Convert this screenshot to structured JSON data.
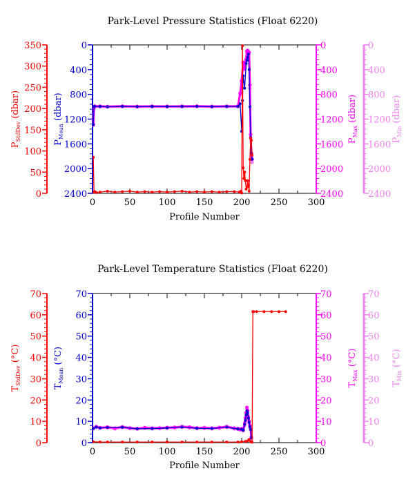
{
  "colors": {
    "stddev": "#ff0000",
    "mean": "#0000cc",
    "max": "#ff00ff",
    "min": "#ee82ee",
    "frame": "#000000"
  },
  "chart_data": [
    {
      "type": "line",
      "title": "Park-Level Pressure Statistics (Float 6220)",
      "xlabel": "Profile Number",
      "xlim": [
        0,
        300
      ],
      "x_ticks": [
        "0",
        "50",
        "100",
        "150",
        "200",
        "250",
        "300"
      ],
      "axes": [
        {
          "key": "stddev",
          "label_main": "P",
          "label_sub": "StdDev",
          "label_unit": " (dbar)",
          "lim": [
            0,
            350
          ],
          "reversed": false,
          "ticks": [
            "0",
            "50",
            "100",
            "150",
            "200",
            "250",
            "300",
            "350"
          ]
        },
        {
          "key": "mean",
          "label_main": "P",
          "label_sub": "Mean",
          "label_unit": " (dbar)",
          "lim": [
            0,
            2400
          ],
          "reversed": true,
          "ticks": [
            "0",
            "400",
            "800",
            "1200",
            "1600",
            "2000",
            "2400"
          ]
        },
        {
          "key": "max",
          "label_main": "P",
          "label_sub": "Max",
          "label_unit": " (dbar)",
          "lim": [
            0,
            2400
          ],
          "reversed": true,
          "ticks": [
            "0",
            "400",
            "800",
            "1200",
            "1600",
            "2000",
            "2400"
          ]
        },
        {
          "key": "min",
          "label_main": "P",
          "label_sub": "Min",
          "label_unit": " (dbar)",
          "lim": [
            0,
            2400
          ],
          "reversed": true,
          "ticks": [
            "0",
            "400",
            "800",
            "1200",
            "1600",
            "2000",
            "2400"
          ]
        }
      ],
      "series": [
        {
          "key": "min",
          "axis": 3,
          "x": [
            1,
            2,
            3,
            10,
            20,
            40,
            60,
            80,
            100,
            120,
            140,
            160,
            180,
            195,
            198,
            200,
            202,
            204,
            206,
            207,
            208,
            209,
            210,
            211,
            212,
            213,
            214
          ],
          "y": [
            1300,
            1020,
            1000,
            1000,
            1005,
            998,
            1003,
            1000,
            1002,
            1000,
            998,
            1003,
            1000,
            1000,
            800,
            600,
            300,
            400,
            250,
            120,
            100,
            150,
            130,
            700,
            1500,
            1800,
            1900
          ]
        },
        {
          "key": "max",
          "axis": 2,
          "x": [
            1,
            2,
            3,
            10,
            20,
            40,
            60,
            80,
            100,
            120,
            140,
            160,
            180,
            195,
            198,
            200,
            202,
            204,
            206,
            207,
            208,
            209,
            210,
            211,
            212,
            213,
            214
          ],
          "y": [
            1280,
            1010,
            990,
            992,
            996,
            990,
            995,
            992,
            994,
            992,
            990,
            995,
            992,
            990,
            780,
            580,
            280,
            380,
            230,
            100,
            90,
            130,
            120,
            650,
            1450,
            1750,
            1850
          ]
        },
        {
          "key": "mean",
          "axis": 1,
          "x": [
            1,
            2,
            3,
            10,
            20,
            40,
            60,
            80,
            100,
            120,
            140,
            160,
            180,
            195,
            198,
            200,
            201,
            202,
            204,
            206,
            207,
            208,
            209,
            210,
            211,
            212,
            213,
            214
          ],
          "y": [
            1290,
            1000,
            995,
            995,
            1000,
            995,
            998,
            995,
            997,
            995,
            994,
            998,
            995,
            995,
            950,
            1400,
            900,
            500,
            700,
            300,
            250,
            200,
            150,
            400,
            1000,
            1500,
            1750,
            1850
          ]
        },
        {
          "key": "stddev",
          "axis": 0,
          "x": [
            1,
            2,
            3,
            5,
            10,
            20,
            30,
            40,
            50,
            60,
            70,
            80,
            90,
            100,
            110,
            120,
            130,
            140,
            150,
            160,
            170,
            180,
            190,
            197,
            199,
            200,
            201,
            202,
            203,
            204,
            205,
            206,
            207,
            208,
            209,
            210,
            211,
            212,
            213,
            214
          ],
          "y": [
            85,
            3,
            4,
            2,
            3,
            5,
            3,
            4,
            5,
            3,
            4,
            3,
            4,
            3,
            4,
            5,
            3,
            4,
            3,
            4,
            3,
            4,
            4,
            3,
            5,
            1,
            348,
            60,
            35,
            50,
            30,
            10,
            15,
            30,
            20,
            5,
            80,
            130,
            125,
            90
          ]
        }
      ]
    },
    {
      "type": "line",
      "title": "Park-Level Temperature Statistics (Float 6220)",
      "xlabel": "Profile Number",
      "xlim": [
        0,
        300
      ],
      "x_ticks": [
        "0",
        "50",
        "100",
        "150",
        "200",
        "250",
        "300"
      ],
      "axes": [
        {
          "key": "stddev",
          "label_main": "T",
          "label_sub": "StdDev",
          "label_unit": " (°C)",
          "lim": [
            0,
            70
          ],
          "reversed": false,
          "ticks": [
            "0",
            "10",
            "20",
            "30",
            "40",
            "50",
            "60",
            "70"
          ]
        },
        {
          "key": "mean",
          "label_main": "T",
          "label_sub": "Mean",
          "label_unit": " (°C)",
          "lim": [
            0,
            70
          ],
          "reversed": false,
          "ticks": [
            "0",
            "10",
            "20",
            "30",
            "40",
            "50",
            "60",
            "70"
          ]
        },
        {
          "key": "max",
          "label_main": "T",
          "label_sub": "Max",
          "label_unit": " (°C)",
          "lim": [
            0,
            70
          ],
          "reversed": false,
          "ticks": [
            "0",
            "10",
            "20",
            "30",
            "40",
            "50",
            "60",
            "70"
          ]
        },
        {
          "key": "min",
          "label_main": "T",
          "label_sub": "Min",
          "label_unit": " (°C)",
          "lim": [
            0,
            70
          ],
          "reversed": false,
          "ticks": [
            "0",
            "10",
            "20",
            "30",
            "40",
            "50",
            "60",
            "70"
          ]
        }
      ],
      "series": [
        {
          "key": "min",
          "axis": 3,
          "x": [
            1,
            5,
            10,
            20,
            30,
            40,
            50,
            60,
            70,
            80,
            90,
            100,
            110,
            120,
            130,
            140,
            150,
            160,
            170,
            180,
            190,
            195,
            198,
            200,
            202,
            204,
            205,
            206,
            207,
            208,
            209,
            210,
            211,
            212,
            213
          ],
          "y": [
            6.5,
            7.2,
            6.8,
            7.0,
            6.5,
            7.1,
            6.6,
            6.4,
            6.7,
            6.5,
            6.6,
            6.8,
            6.9,
            7.2,
            7.0,
            6.6,
            6.7,
            6.5,
            6.8,
            7.2,
            6.5,
            6.3,
            6.0,
            6.2,
            5.5,
            8.0,
            10.0,
            12.0,
            14.0,
            13.0,
            11.0,
            9.0,
            7.0,
            6.0,
            2.0
          ]
        },
        {
          "key": "max",
          "axis": 2,
          "x": [
            1,
            5,
            10,
            20,
            30,
            40,
            50,
            60,
            70,
            80,
            90,
            100,
            110,
            120,
            130,
            140,
            150,
            160,
            170,
            180,
            190,
            195,
            198,
            200,
            202,
            204,
            205,
            206,
            207,
            208,
            209,
            210,
            211,
            212,
            213
          ],
          "y": [
            6.8,
            7.5,
            7.0,
            7.3,
            6.8,
            7.4,
            6.9,
            6.6,
            7.0,
            6.8,
            6.9,
            7.1,
            7.2,
            7.5,
            7.3,
            6.9,
            7.0,
            6.8,
            7.1,
            7.5,
            6.8,
            6.6,
            6.3,
            6.5,
            6.0,
            9.0,
            11.5,
            14.0,
            16.5,
            15.0,
            12.0,
            10.0,
            8.0,
            6.5,
            2.5
          ]
        },
        {
          "key": "mean",
          "axis": 1,
          "x": [
            1,
            5,
            10,
            20,
            40,
            60,
            80,
            100,
            120,
            140,
            160,
            180,
            195,
            200,
            202,
            204,
            205,
            206,
            207,
            208,
            209,
            210,
            211,
            212,
            213
          ],
          "y": [
            6.6,
            7.3,
            6.9,
            7.1,
            7.2,
            6.5,
            6.6,
            6.9,
            7.3,
            6.7,
            6.6,
            7.3,
            6.4,
            6.3,
            5.8,
            8.5,
            10.5,
            13.0,
            15.0,
            14.0,
            11.5,
            9.5,
            7.5,
            6.2,
            2.2
          ]
        },
        {
          "key": "stddev",
          "axis": 0,
          "x": [
            1,
            10,
            20,
            40,
            60,
            80,
            100,
            120,
            140,
            160,
            180,
            195,
            200,
            205,
            208,
            210,
            212,
            213,
            214,
            215,
            216,
            220,
            230,
            240,
            250,
            259
          ],
          "y": [
            0.4,
            0.3,
            0.3,
            0.3,
            0.3,
            0.3,
            0.3,
            0.3,
            0.3,
            0.3,
            0.3,
            0.3,
            0.4,
            0.6,
            0.8,
            1.5,
            0.5,
            0.3,
            0.2,
            61.5,
            61.5,
            61.5,
            61.5,
            61.5,
            61.5,
            61.5
          ]
        }
      ]
    }
  ]
}
